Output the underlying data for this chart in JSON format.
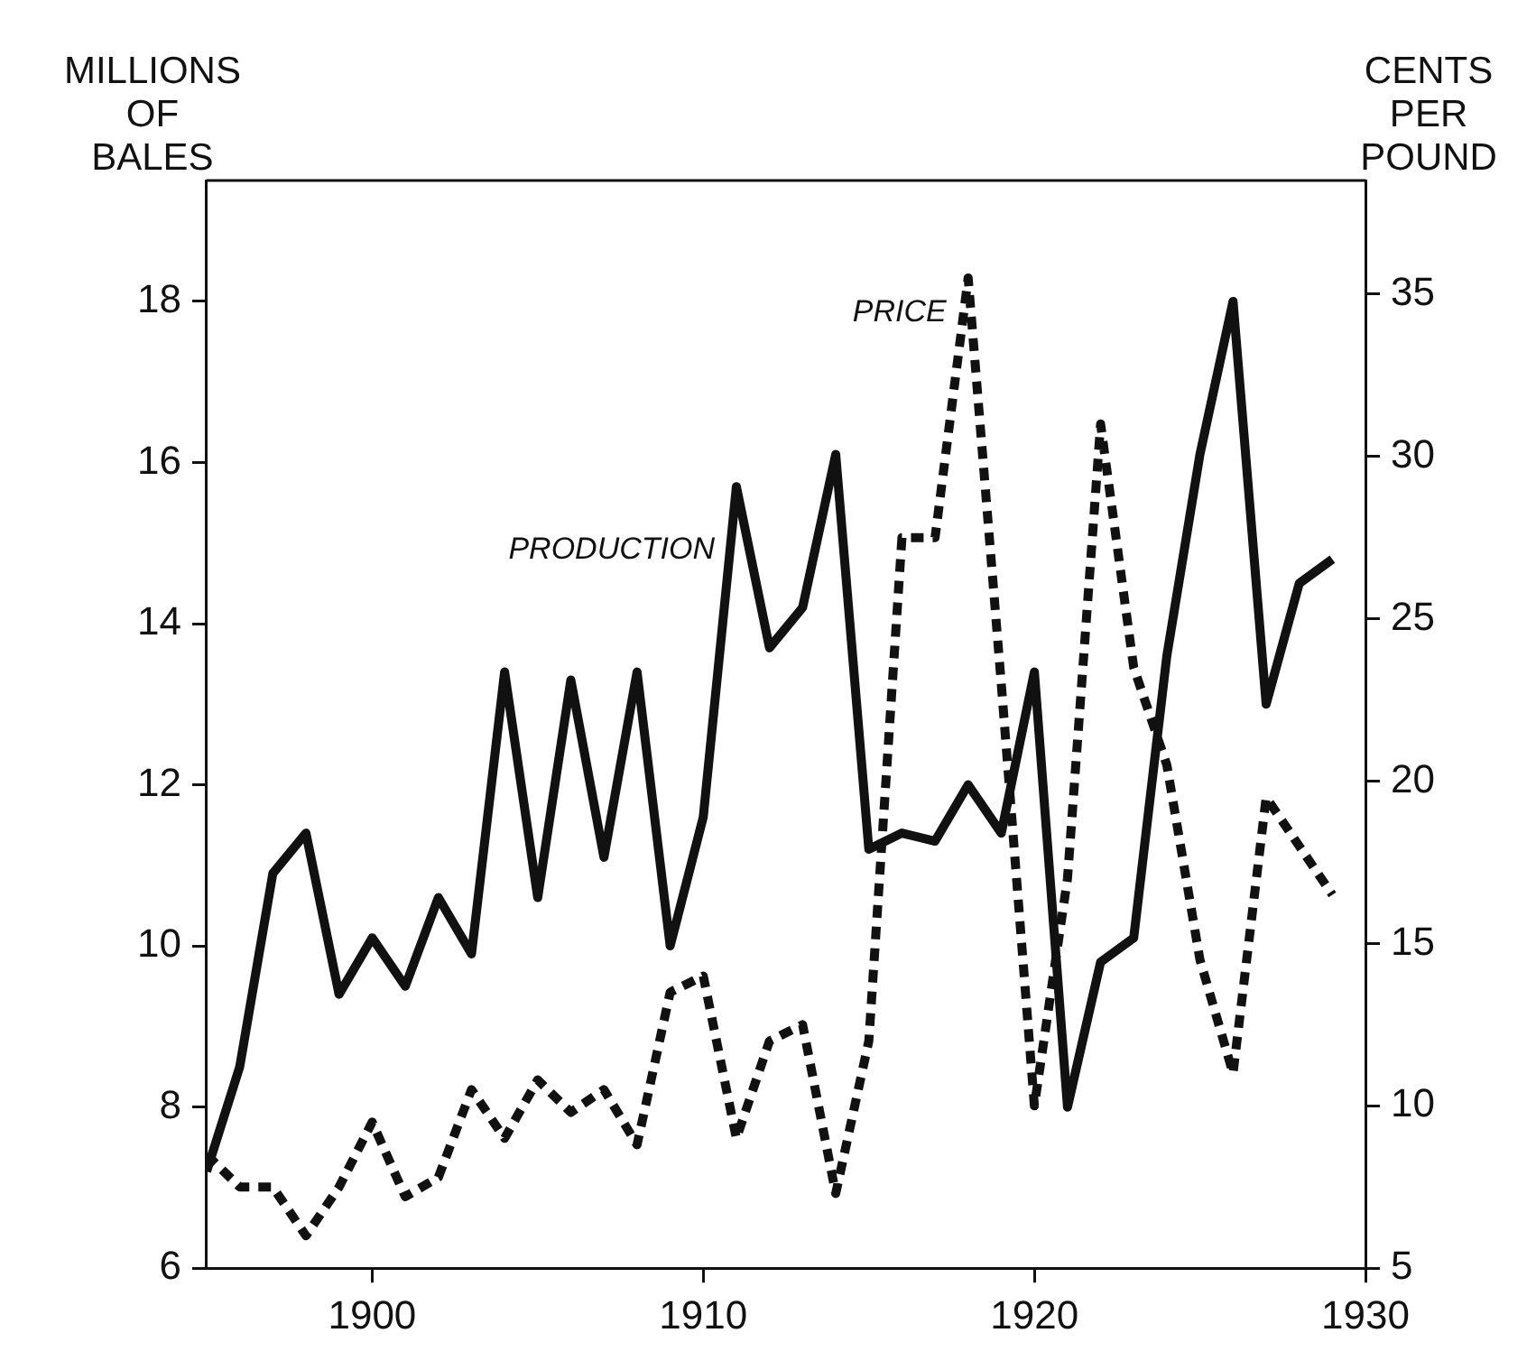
{
  "chart_data": {
    "type": "line",
    "ylabel": "MILLIONS OF BALES",
    "y2label": "CENTS PER POUND",
    "x": [
      1895,
      1896,
      1897,
      1898,
      1899,
      1900,
      1901,
      1902,
      1903,
      1904,
      1905,
      1906,
      1907,
      1908,
      1909,
      1910,
      1911,
      1912,
      1913,
      1914,
      1915,
      1916,
      1917,
      1918,
      1919,
      1920,
      1921,
      1922,
      1923,
      1924,
      1925,
      1926,
      1927,
      1928,
      1929
    ],
    "series": [
      {
        "name": "PRODUCTION",
        "color": "#111111",
        "line_style": "solid",
        "values": [
          7.2,
          8.5,
          10.9,
          11.4,
          9.4,
          10.1,
          9.5,
          10.6,
          9.9,
          13.4,
          10.6,
          13.3,
          11.1,
          13.4,
          10.0,
          11.6,
          15.7,
          13.7,
          14.2,
          16.1,
          11.2,
          11.4,
          11.3,
          12.0,
          11.4,
          13.4,
          8.0,
          9.8,
          10.1,
          13.6,
          16.1,
          18.0,
          13.0,
          14.5,
          14.8
        ]
      },
      {
        "name": "PRICE",
        "color": "#111111",
        "line_style": "dashed",
        "axis": "y2",
        "values": [
          8.5,
          7.5,
          7.5,
          6,
          7.5,
          9.5,
          7.2,
          7.8,
          10.5,
          9,
          10.8,
          9.8,
          10.5,
          8.8,
          13.5,
          14,
          9,
          12,
          12.5,
          7.3,
          12,
          27.5,
          27.5,
          35.5,
          23,
          10,
          17,
          31,
          23.5,
          20.5,
          14.5,
          11,
          19.5,
          18,
          16.5
        ]
      }
    ],
    "xlim": [
      1895,
      1930
    ],
    "xticks": [
      1900,
      1910,
      1920,
      1930
    ],
    "ylim": [
      6,
      19.5
    ],
    "yticks": [
      6,
      8,
      10,
      12,
      14,
      16,
      18
    ],
    "y2lim": [
      5,
      38.5
    ],
    "y2ticks": [
      5,
      10,
      15,
      20,
      25,
      30,
      35
    ],
    "grid": false,
    "legend": false,
    "marker": "none"
  }
}
